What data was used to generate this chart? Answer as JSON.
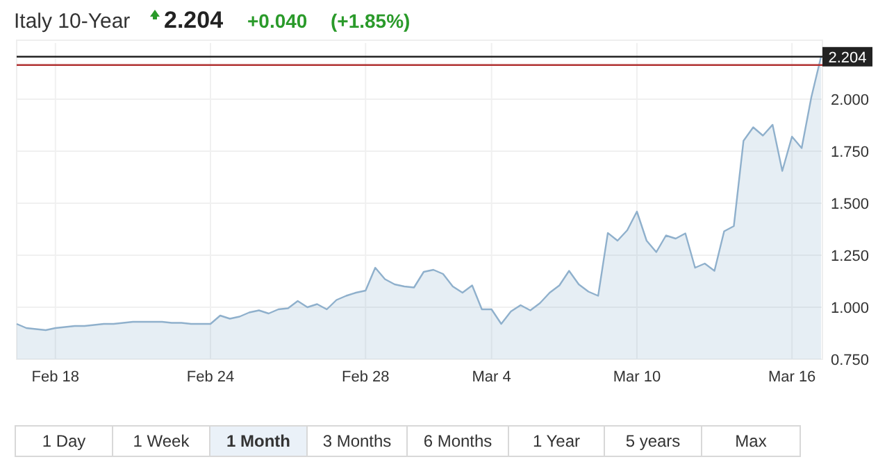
{
  "chart_data": {
    "type": "area",
    "title": "Italy 10-Year",
    "annotations": [
      "2.204",
      "+0.040",
      "(+1.85%)",
      "1 Day",
      "1 Week",
      "1 Month",
      "3 Months",
      "6 Months",
      "1 Year",
      "5 years",
      "Max"
    ],
    "categories": [
      null,
      null,
      null,
      null,
      "Feb 18",
      null,
      null,
      null,
      null,
      null,
      null,
      null,
      null,
      null,
      null,
      null,
      null,
      null,
      null,
      null,
      "Feb 24",
      null,
      null,
      null,
      null,
      null,
      null,
      null,
      null,
      null,
      null,
      null,
      null,
      null,
      null,
      null,
      "Feb 28",
      null,
      null,
      null,
      null,
      null,
      null,
      null,
      null,
      null,
      null,
      null,
      null,
      "Mar 4",
      null,
      null,
      null,
      null,
      null,
      null,
      null,
      null,
      null,
      null,
      null,
      null,
      null,
      null,
      "Mar 10",
      null,
      null,
      null,
      null,
      null,
      null,
      null,
      null,
      null,
      null,
      null,
      null,
      null,
      null,
      null,
      "Mar 16",
      null,
      null,
      null
    ],
    "series": [
      {
        "color": "#8fb0cc",
        "values": [
          0.92,
          0.9,
          0.895,
          0.89,
          0.9,
          0.905,
          0.91,
          0.91,
          0.915,
          0.92,
          0.92,
          0.925,
          0.93,
          0.93,
          0.93,
          0.93,
          0.925,
          0.925,
          0.92,
          0.92,
          0.92,
          0.96,
          0.945,
          0.955,
          0.975,
          0.985,
          0.97,
          0.99,
          0.995,
          1.03,
          1.0,
          1.015,
          0.99,
          1.035,
          1.055,
          1.07,
          1.08,
          1.19,
          1.135,
          1.11,
          1.1,
          1.095,
          1.17,
          1.18,
          1.16,
          1.1,
          1.07,
          1.105,
          0.99,
          0.99,
          0.92,
          0.98,
          1.01,
          0.985,
          1.02,
          1.07,
          1.105,
          1.175,
          1.11,
          1.075,
          1.055,
          1.357,
          1.32,
          1.37,
          1.46,
          1.32,
          1.265,
          1.345,
          1.33,
          1.355,
          1.19,
          1.21,
          1.175,
          1.365,
          1.39,
          1.8,
          1.865,
          1.825,
          1.877,
          1.655,
          1.82,
          1.765,
          2.01,
          2.204
        ]
      }
    ],
    "ylim": [
      0.75,
      2.27
    ],
    "yticks": [
      {
        "value": 0.75,
        "label": "0.750"
      },
      {
        "value": 1.0,
        "label": "1.000"
      },
      {
        "value": 1.25,
        "label": "1.250"
      },
      {
        "value": 1.5,
        "label": "1.500"
      },
      {
        "value": 1.75,
        "label": "1.750"
      },
      {
        "value": 2.0,
        "label": "2.000"
      }
    ],
    "ref_lines": [
      {
        "axis": "y",
        "value": 2.204,
        "label": "2.204",
        "color": "#222222"
      },
      {
        "axis": "y",
        "value": 2.164,
        "color": "#b03030"
      }
    ],
    "grid": true
  }
}
